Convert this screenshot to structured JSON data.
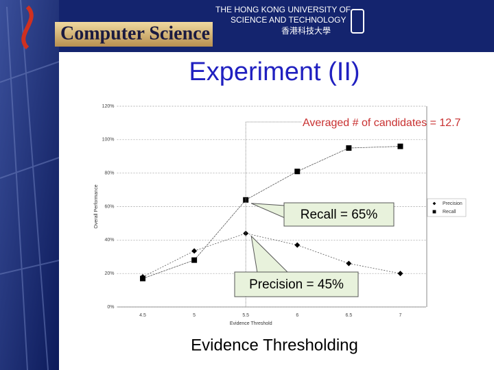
{
  "header": {
    "university_line1": "THE HONG KONG UNIVERSITY OF",
    "university_line2": "SCIENCE AND TECHNOLOGY",
    "university_chinese": "香港科技大學",
    "department": "Computer Science"
  },
  "slide_title": "Experiment (II)",
  "caption": "Evidence Thresholding",
  "chart_data": {
    "type": "line",
    "x_label": "Evidence Threshold",
    "y_label": "Overall Performance",
    "categories": [
      "4.5",
      "5",
      "5.5",
      "6",
      "6.5",
      "7"
    ],
    "series": [
      {
        "name": "Precision",
        "color": "#000000",
        "marker": "diamond",
        "values": [
          18,
          33.5,
          44,
          37,
          26,
          20
        ]
      },
      {
        "name": "Recall",
        "color": "#000000",
        "marker": "square",
        "values": [
          17,
          28,
          64,
          81,
          95,
          96
        ]
      }
    ],
    "ylim": [
      0,
      120
    ],
    "yticks": [
      {
        "value": 0,
        "label": "0%"
      },
      {
        "value": 20,
        "label": "20%"
      },
      {
        "value": 40,
        "label": "40%"
      },
      {
        "value": 60,
        "label": "60%"
      },
      {
        "value": 80,
        "label": "80%"
      },
      {
        "value": 100,
        "label": "100%"
      },
      {
        "value": 120,
        "label": "120%"
      }
    ],
    "grid": true,
    "legend": "right",
    "annotations": [
      "Averaged # of candidates = 12.7",
      "Recall = 65%",
      "Precision = 45%"
    ]
  }
}
